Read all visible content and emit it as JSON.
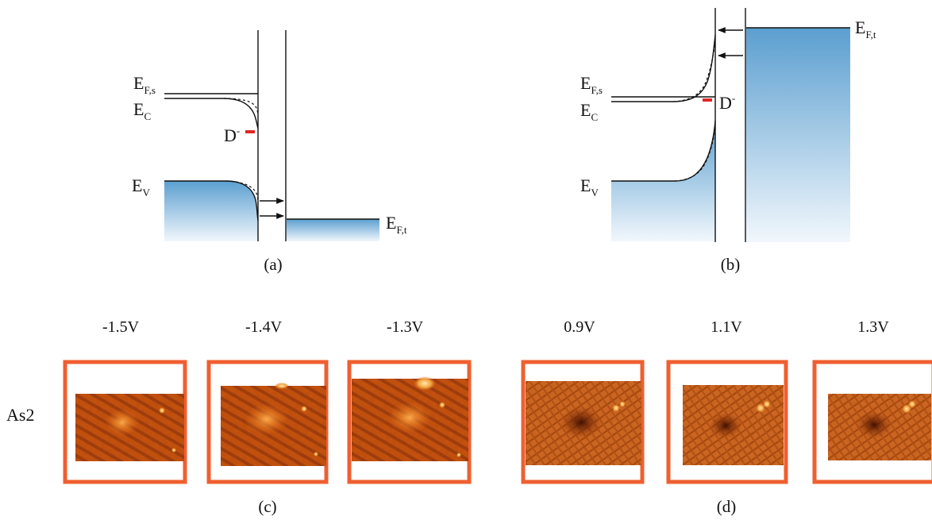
{
  "panel_a": {
    "caption": "(a)",
    "labels": {
      "ef_s": {
        "main": "E",
        "sub": "F,s"
      },
      "ec": {
        "main": "E",
        "sub": "C"
      },
      "ev": {
        "main": "E",
        "sub": "V"
      },
      "ef_t": {
        "main": "E",
        "sub": "F,t"
      },
      "donor": {
        "main": "D",
        "sup": "-"
      }
    }
  },
  "panel_b": {
    "caption": "(b)",
    "labels": {
      "ef_s": {
        "main": "E",
        "sub": "F,s"
      },
      "ec": {
        "main": "E",
        "sub": "C"
      },
      "ev": {
        "main": "E",
        "sub": "V"
      },
      "ef_t": {
        "main": "E",
        "sub": "F,t"
      },
      "donor": {
        "main": "D",
        "sup": "-"
      }
    }
  },
  "panel_c": {
    "caption": "(c)",
    "row_label": "As2",
    "voltages": [
      "-1.5V",
      "-1.4V",
      "-1.3V"
    ]
  },
  "panel_d": {
    "caption": "(d)",
    "voltages": [
      "0.9V",
      "1.1V",
      "1.3V"
    ]
  },
  "colors": {
    "band_fill_top": "#5b9fd0",
    "band_fill_bottom": "#eef5fb",
    "donor_level": "#e32626",
    "frame": "#ef5f30",
    "stm_base": "#c8520c"
  }
}
